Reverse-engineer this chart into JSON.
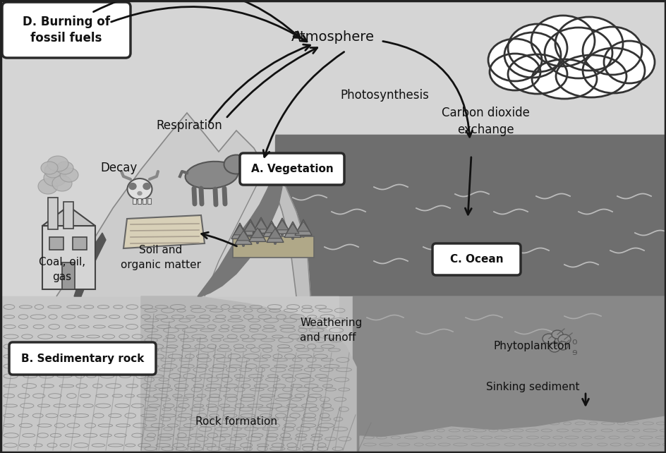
{
  "bg_top": "#d8d8d8",
  "bg_ocean_upper": "#707070",
  "bg_ocean_lower": "#888888",
  "bg_rock_left": "#c0c0c0",
  "mountain_color": "#d0d0d0",
  "mountain_outline": "#555555",
  "river_color": "#666666",
  "coast_white": "#e8e8e8",
  "box_D": "D. Burning of\nfossil fuels",
  "box_A": "A. Vegetation",
  "box_B": "B. Sedimentary rock",
  "box_C": "C. Ocean",
  "txt_atmosphere": "Atmosphere",
  "txt_photosynthesis": "Photosynthesis",
  "txt_respiration": "Respiration",
  "txt_decay": "Decay",
  "txt_soil": "Soil and\norganic matter",
  "txt_coal": "Coal, oil,\ngas",
  "txt_co2": "Carbon dioxide\nexchange",
  "txt_weathering": "Weathering\nand runoff",
  "txt_rock_formation": "Rock formation",
  "txt_phytoplankton": "Phytoplankton",
  "txt_sinking": "Sinking sediment",
  "wave_color": "#aaaaaa",
  "arrow_color": "#111111",
  "text_color": "#111111",
  "box_edge": "#333333"
}
